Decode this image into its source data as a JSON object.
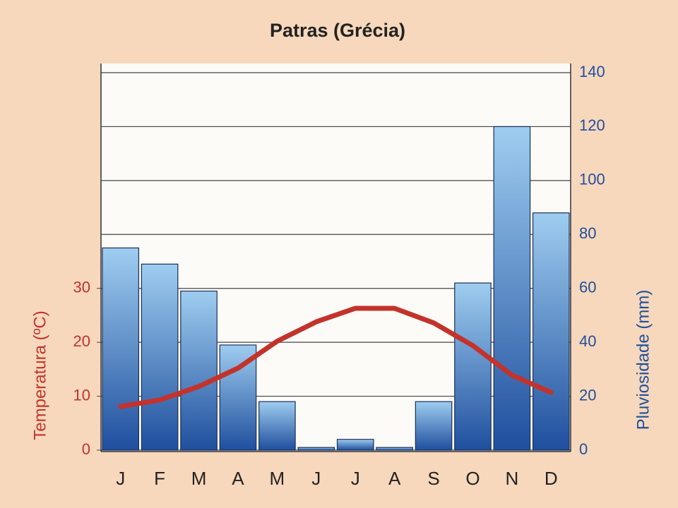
{
  "chart_data": {
    "type": "climograph",
    "title": "Patras (Grécia)",
    "categories": [
      "J",
      "F",
      "M",
      "A",
      "M",
      "J",
      "J",
      "A",
      "S",
      "O",
      "N",
      "D"
    ],
    "y_label": "Temperatura (ºC)",
    "y2_label": "Pluviosidade (mm)",
    "ylim": [
      0,
      70
    ],
    "yticks": [
      0,
      10,
      20,
      30
    ],
    "y2lim": [
      0,
      140
    ],
    "y2ticks": [
      0,
      20,
      40,
      60,
      80,
      100,
      120,
      140
    ],
    "grid": true,
    "series": [
      {
        "name": "Pluviosidade",
        "type": "bar",
        "axis": "y2",
        "color": "#1f4f9e",
        "values": [
          75,
          69,
          59,
          39,
          18,
          1,
          4,
          1,
          18,
          62,
          120,
          88
        ]
      },
      {
        "name": "Temperatura",
        "type": "line",
        "axis": "y",
        "color": "#c3332b",
        "values": [
          8.1,
          9.3,
          11.8,
          15.2,
          20.2,
          23.8,
          26.3,
          26.3,
          23.6,
          19.4,
          13.9,
          10.7
        ]
      }
    ]
  }
}
